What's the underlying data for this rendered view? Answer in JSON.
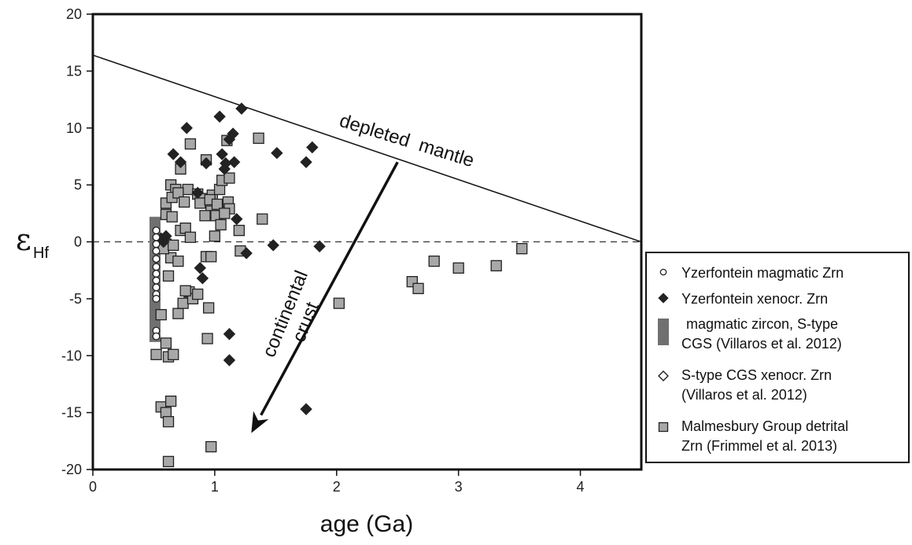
{
  "chart_data": {
    "type": "scatter",
    "title": "",
    "xlabel": "age (Ga)",
    "ylabel_main": "ε",
    "ylabel_sub": "Hf",
    "xlim": [
      0,
      4.5
    ],
    "ylim": [
      -20,
      20
    ],
    "xticks": [
      0,
      1,
      2,
      3,
      4
    ],
    "yticks": [
      -20,
      -15,
      -10,
      -5,
      0,
      5,
      10,
      15,
      20
    ],
    "grid": false,
    "legend_position": "right",
    "zero_line": {
      "y": 0,
      "style": "dashed"
    },
    "depleted_mantle_line": {
      "x": [
        0,
        4.5
      ],
      "y": [
        16.4,
        0
      ],
      "label": "depleted  mantle"
    },
    "arrow": {
      "from": [
        2.5,
        7
      ],
      "to": [
        1.3,
        -16.8
      ]
    },
    "arrow_label": [
      "continental",
      "crust"
    ],
    "series": [
      {
        "name": "Yzerfontein magmatic Zrn",
        "marker": "circle-open",
        "color": "#ffffff",
        "points": [
          [
            0.52,
            1.0
          ],
          [
            0.52,
            0.4
          ],
          [
            0.52,
            -0.2
          ],
          [
            0.52,
            -0.8
          ],
          [
            0.52,
            -1.5
          ],
          [
            0.52,
            -2.2
          ],
          [
            0.52,
            -2.8
          ],
          [
            0.52,
            -3.4
          ],
          [
            0.52,
            -4.0
          ],
          [
            0.52,
            -4.6
          ],
          [
            0.52,
            -5.0
          ],
          [
            0.52,
            -7.8
          ],
          [
            0.52,
            -8.3
          ]
        ]
      },
      {
        "name": "Yzerfontein xenocr. Zrn",
        "marker": "diamond-filled",
        "color": "#222222",
        "points": [
          [
            0.66,
            7.7
          ],
          [
            0.72,
            7.0
          ],
          [
            0.77,
            10.0
          ],
          [
            0.86,
            4.3
          ],
          [
            0.93,
            6.9
          ],
          [
            1.04,
            11.0
          ],
          [
            1.06,
            7.7
          ],
          [
            1.08,
            6.4
          ],
          [
            1.09,
            6.9
          ],
          [
            1.12,
            9.0
          ],
          [
            1.15,
            9.5
          ],
          [
            1.16,
            7.0
          ],
          [
            1.18,
            2.0
          ],
          [
            1.22,
            11.7
          ],
          [
            1.26,
            -1.0
          ],
          [
            1.51,
            7.8
          ],
          [
            1.48,
            -0.3
          ],
          [
            1.75,
            7.0
          ],
          [
            1.8,
            8.3
          ],
          [
            1.86,
            -0.4
          ],
          [
            1.75,
            -14.7
          ],
          [
            1.12,
            -8.1
          ],
          [
            1.12,
            -10.4
          ],
          [
            0.9,
            -3.2
          ],
          [
            0.88,
            -2.3
          ],
          [
            0.56,
            0.3
          ],
          [
            0.58,
            0.0
          ],
          [
            0.6,
            0.5
          ]
        ]
      },
      {
        "name": "magmatic  zircon, S-type CGS (Villaros et al. 2012)",
        "marker": "bar",
        "color": "#707070",
        "bar": {
          "x": 0.51,
          "y_range": [
            -8.8,
            2.2
          ]
        }
      },
      {
        "name": "S-type CGS xenocr. Zrn (Villaros et al. 2012)",
        "marker": "diamond-open",
        "color": "#ffffff",
        "points": []
      },
      {
        "name": "Malmesbury Group detrital Zrn (Frimmel et al. 2013)",
        "marker": "square",
        "color": "#a8a8a8",
        "points": [
          [
            0.64,
            5.0
          ],
          [
            0.68,
            4.6
          ],
          [
            0.72,
            6.4
          ],
          [
            0.78,
            4.6
          ],
          [
            0.8,
            8.6
          ],
          [
            0.86,
            4.2
          ],
          [
            0.9,
            3.8
          ],
          [
            0.93,
            7.2
          ],
          [
            0.97,
            2.7
          ],
          [
            0.98,
            4.1
          ],
          [
            1.01,
            2.3
          ],
          [
            1.04,
            4.6
          ],
          [
            1.06,
            5.4
          ],
          [
            1.1,
            8.9
          ],
          [
            1.12,
            5.6
          ],
          [
            1.11,
            3.5
          ],
          [
            1.12,
            2.9
          ],
          [
            1.2,
            1.0
          ],
          [
            1.21,
            -0.8
          ],
          [
            1.36,
            9.1
          ],
          [
            1.39,
            2.0
          ],
          [
            0.7,
            -6.3
          ],
          [
            0.74,
            -5.4
          ],
          [
            0.79,
            -4.4
          ],
          [
            0.82,
            -5.0
          ],
          [
            0.86,
            -4.6
          ],
          [
            0.93,
            -1.3
          ],
          [
            0.97,
            -1.3
          ],
          [
            1.0,
            0.5
          ],
          [
            0.95,
            -5.8
          ],
          [
            0.94,
            -8.5
          ],
          [
            0.97,
            -18.0
          ],
          [
            0.56,
            -14.5
          ],
          [
            0.6,
            -15.0
          ],
          [
            0.62,
            -15.8
          ],
          [
            0.64,
            -14.0
          ],
          [
            0.62,
            -19.3
          ],
          [
            0.62,
            -10.1
          ],
          [
            0.66,
            -9.9
          ],
          [
            0.52,
            -9.9
          ],
          [
            0.6,
            -8.9
          ],
          [
            0.56,
            -6.4
          ],
          [
            0.62,
            -3.0
          ],
          [
            0.64,
            -1.4
          ],
          [
            0.7,
            -1.7
          ],
          [
            0.72,
            1.0
          ],
          [
            0.76,
            1.2
          ],
          [
            0.8,
            0.4
          ],
          [
            0.6,
            2.4
          ],
          [
            0.65,
            2.2
          ],
          [
            0.6,
            -0.2
          ],
          [
            0.58,
            -0.6
          ],
          [
            0.66,
            -0.3
          ],
          [
            0.6,
            3.4
          ],
          [
            0.65,
            3.9
          ],
          [
            0.7,
            4.3
          ],
          [
            0.75,
            3.5
          ],
          [
            0.76,
            -4.3
          ],
          [
            0.88,
            3.4
          ],
          [
            0.92,
            2.3
          ],
          [
            0.96,
            3.7
          ],
          [
            1.02,
            3.3
          ],
          [
            1.05,
            1.5
          ],
          [
            1.08,
            2.5
          ],
          [
            2.02,
            -5.4
          ],
          [
            2.62,
            -3.5
          ],
          [
            2.67,
            -4.1
          ],
          [
            2.8,
            -1.7
          ],
          [
            3.0,
            -2.3
          ],
          [
            3.31,
            -2.1
          ],
          [
            3.52,
            -0.6
          ]
        ]
      }
    ]
  }
}
